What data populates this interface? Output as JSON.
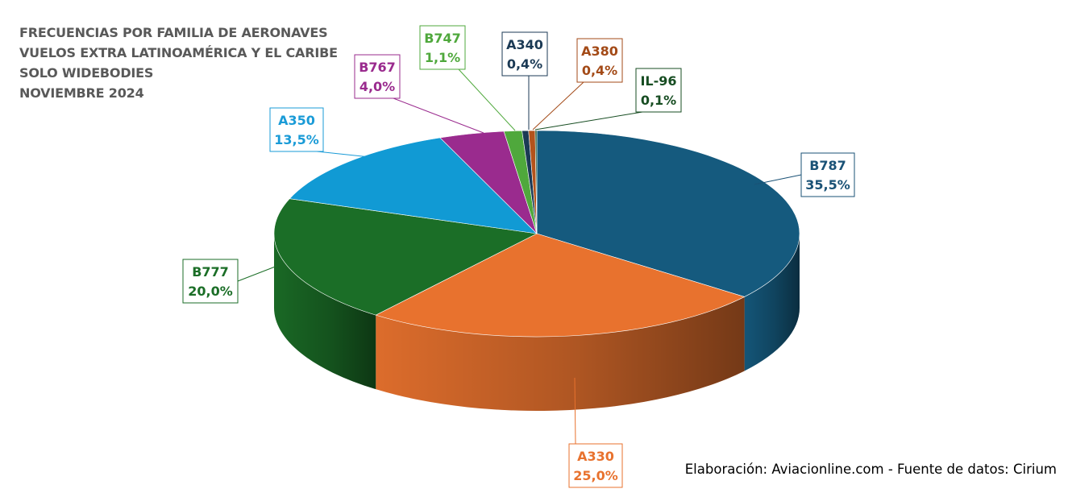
{
  "title_lines": [
    "FRECUENCIAS POR FAMILIA DE AERONAVES",
    "VUELOS EXTRA LATINOAMÉRICA Y EL CARIBE",
    "SOLO WIDEBODIES",
    "NOVIEMBRE 2024"
  ],
  "credit": "Elaboración: Aviacionline.com - Fuente de datos: Cirium",
  "chart_data": {
    "type": "pie",
    "title": "FRECUENCIAS POR FAMILIA DE AERONAVES - VUELOS EXTRA LATINOAMÉRICA Y EL CARIBE - SOLO WIDEBODIES - NOVIEMBRE 2024",
    "legend": "none",
    "slices": [
      {
        "label": "B787",
        "value": 35.5,
        "text": "35,5%",
        "color": "#155a7e",
        "text_color": "#1a5276"
      },
      {
        "label": "A330",
        "value": 25.0,
        "text": "25,0%",
        "color": "#e8722e",
        "text_color": "#e8722e"
      },
      {
        "label": "B777",
        "value": 20.0,
        "text": "20,0%",
        "color": "#1b6e27",
        "text_color": "#1b6e27"
      },
      {
        "label": "A350",
        "value": 13.5,
        "text": "13,5%",
        "color": "#119ad4",
        "text_color": "#1a9bd7"
      },
      {
        "label": "B767",
        "value": 4.0,
        "text": "4,0%",
        "color": "#9a2b8e",
        "text_color": "#9a2b8e"
      },
      {
        "label": "B747",
        "value": 1.1,
        "text": "1,1%",
        "color": "#4fa83c",
        "text_color": "#4fa83c"
      },
      {
        "label": "A340",
        "value": 0.4,
        "text": "0,4%",
        "color": "#1b3a55",
        "text_color": "#1b3a55"
      },
      {
        "label": "A380",
        "value": 0.4,
        "text": "0,4%",
        "color": "#b4531b",
        "text_color": "#a34a17"
      },
      {
        "label": "IL-96",
        "value": 0.1,
        "text": "0,1%",
        "color": "#174d22",
        "text_color": "#174d22"
      }
    ]
  }
}
